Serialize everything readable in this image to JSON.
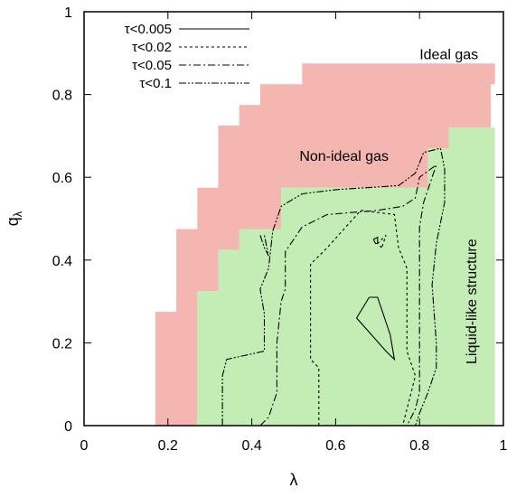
{
  "chart_data": {
    "type": "area",
    "xlabel": "λ",
    "ylabel_base": "q",
    "ylabel_sub": "λ",
    "xlim": [
      0,
      1
    ],
    "ylim": [
      0,
      1
    ],
    "xticks": [
      0,
      0.2,
      0.4,
      0.6,
      0.8,
      1
    ],
    "yticks": [
      0,
      0.2,
      0.4,
      0.6,
      0.8,
      1
    ],
    "xtick_labels": [
      "0",
      "0.2",
      "0.4",
      "0.6",
      "0.8",
      "1"
    ],
    "ytick_labels": [
      "0",
      "0.2",
      "0.4",
      "0.6",
      "0.8",
      "1"
    ],
    "colors": {
      "non_ideal": "#f4b6b1",
      "liquid": "#c3edb5",
      "frame": "#000000"
    },
    "regions": {
      "non_ideal_gas": {
        "label": "Non-ideal gas",
        "label_pos": [
          0.62,
          0.64
        ],
        "polygon": [
          [
            0.17,
            0
          ],
          [
            0.17,
            0.275
          ],
          [
            0.22,
            0.275
          ],
          [
            0.22,
            0.475
          ],
          [
            0.27,
            0.475
          ],
          [
            0.27,
            0.575
          ],
          [
            0.32,
            0.575
          ],
          [
            0.32,
            0.725
          ],
          [
            0.37,
            0.725
          ],
          [
            0.37,
            0.775
          ],
          [
            0.42,
            0.775
          ],
          [
            0.42,
            0.825
          ],
          [
            0.52,
            0.825
          ],
          [
            0.52,
            0.875
          ],
          [
            0.98,
            0.875
          ],
          [
            0.98,
            0.825
          ],
          [
            0.97,
            0.825
          ],
          [
            0.97,
            0.72
          ],
          [
            0.87,
            0.72
          ],
          [
            0.87,
            0.67
          ],
          [
            0.82,
            0.67
          ],
          [
            0.82,
            0.575
          ],
          [
            0.47,
            0.575
          ],
          [
            0.47,
            0.475
          ],
          [
            0.37,
            0.475
          ],
          [
            0.37,
            0.425
          ],
          [
            0.32,
            0.425
          ],
          [
            0.32,
            0.325
          ],
          [
            0.27,
            0.325
          ],
          [
            0.27,
            0
          ]
        ]
      },
      "liquid_like_structure": {
        "label": "Liquid-like structure",
        "label_pos": [
          0.935,
          0.3
        ],
        "polygon": [
          [
            0.27,
            0
          ],
          [
            0.27,
            0.325
          ],
          [
            0.32,
            0.325
          ],
          [
            0.32,
            0.425
          ],
          [
            0.37,
            0.425
          ],
          [
            0.37,
            0.475
          ],
          [
            0.47,
            0.475
          ],
          [
            0.47,
            0.575
          ],
          [
            0.82,
            0.575
          ],
          [
            0.82,
            0.67
          ],
          [
            0.87,
            0.67
          ],
          [
            0.87,
            0.72
          ],
          [
            0.98,
            0.72
          ],
          [
            0.98,
            0
          ]
        ]
      },
      "ideal_gas": {
        "label": "Ideal gas",
        "label_pos": [
          0.87,
          0.885
        ]
      }
    },
    "series": [
      {
        "name": "τ<0.005",
        "dash": "",
        "lines": [
          [
            [
              0.68,
              0.31
            ],
            [
              0.65,
              0.26
            ],
            [
              0.72,
              0.18
            ],
            [
              0.74,
              0.16
            ],
            [
              0.73,
              0.22
            ],
            [
              0.7,
              0.31
            ],
            [
              0.68,
              0.31
            ]
          ],
          [
            [
              0.69,
              0.45
            ],
            [
              0.695,
              0.44
            ],
            [
              0.7,
              0.44
            ],
            [
              0.7,
              0.455
            ],
            [
              0.69,
              0.45
            ]
          ]
        ]
      },
      {
        "name": "τ<0.02",
        "dash": "3,3",
        "lines": [
          [
            [
              0.56,
              0
            ],
            [
              0.56,
              0.14
            ],
            [
              0.54,
              0.16
            ],
            [
              0.54,
              0.39
            ],
            [
              0.58,
              0.43
            ],
            [
              0.66,
              0.52
            ],
            [
              0.74,
              0.51
            ],
            [
              0.75,
              0.43
            ],
            [
              0.77,
              0.38
            ],
            [
              0.77,
              0.18
            ],
            [
              0.79,
              0.12
            ],
            [
              0.76,
              0
            ]
          ],
          [
            [
              0.71,
              0.43
            ],
            [
              0.7,
              0.44
            ],
            [
              0.72,
              0.46
            ],
            [
              0.71,
              0.43
            ]
          ]
        ]
      },
      {
        "name": "τ<0.05",
        "dash": "8,3,2,3",
        "lines": [
          [
            [
              0.42,
              0
            ],
            [
              0.44,
              0.02
            ],
            [
              0.46,
              0.08
            ],
            [
              0.46,
              0.2
            ],
            [
              0.47,
              0.3
            ],
            [
              0.48,
              0.33
            ],
            [
              0.48,
              0.42
            ],
            [
              0.52,
              0.48
            ],
            [
              0.58,
              0.51
            ],
            [
              0.7,
              0.52
            ],
            [
              0.76,
              0.53
            ],
            [
              0.79,
              0.55
            ],
            [
              0.8,
              0.6
            ],
            [
              0.84,
              0.63
            ],
            [
              0.82,
              0.57
            ],
            [
              0.81,
              0.54
            ],
            [
              0.8,
              0.48
            ],
            [
              0.8,
              0.38
            ],
            [
              0.8,
              0.22
            ],
            [
              0.8,
              0.14
            ],
            [
              0.8,
              0.08
            ],
            [
              0.79,
              0.04
            ],
            [
              0.77,
              0
            ]
          ]
        ]
      },
      {
        "name": "τ<0.1",
        "dash": "8,2,2,2,2,2",
        "lines": [
          [
            [
              0.33,
              0
            ],
            [
              0.33,
              0.12
            ],
            [
              0.34,
              0.16
            ],
            [
              0.43,
              0.18
            ],
            [
              0.43,
              0.27
            ],
            [
              0.42,
              0.33
            ],
            [
              0.44,
              0.38
            ],
            [
              0.45,
              0.47
            ],
            [
              0.47,
              0.53
            ],
            [
              0.52,
              0.56
            ],
            [
              0.6,
              0.57
            ],
            [
              0.75,
              0.58
            ],
            [
              0.79,
              0.61
            ],
            [
              0.81,
              0.66
            ],
            [
              0.85,
              0.67
            ],
            [
              0.86,
              0.62
            ],
            [
              0.86,
              0.54
            ],
            [
              0.84,
              0.44
            ],
            [
              0.83,
              0.34
            ],
            [
              0.84,
              0.2
            ],
            [
              0.84,
              0.14
            ],
            [
              0.82,
              0.08
            ],
            [
              0.8,
              0.03
            ],
            [
              0.79,
              0
            ]
          ],
          [
            [
              0.42,
              0.46
            ],
            [
              0.43,
              0.43
            ],
            [
              0.44,
              0.41
            ],
            [
              0.43,
              0.46
            ]
          ]
        ]
      }
    ],
    "legend": {
      "position": "top-left",
      "entries": [
        "τ<0.005",
        "τ<0.02",
        "τ<0.05",
        "τ<0.1"
      ]
    }
  }
}
